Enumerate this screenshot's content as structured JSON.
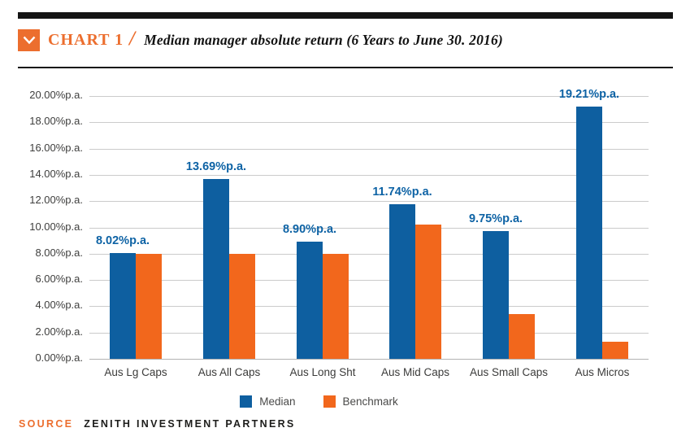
{
  "header": {
    "chart_label": "CHART 1",
    "separator": "/",
    "title": "Median manager absolute return (6 Years to June 30. 2016)"
  },
  "icons": {
    "header_marker": "chevron-down-icon"
  },
  "colors": {
    "accent_orange": "#ec6e2e",
    "bar_blue": "#0e5fa0",
    "bar_orange": "#f2671c",
    "value_label_blue": "#0e63a5",
    "rule_black": "#141414",
    "gridline_gray": "#cbcbcb"
  },
  "chart_data": {
    "type": "bar",
    "title": "Median manager absolute return (6 Years to June 30. 2016)",
    "categories": [
      "Aus Lg Caps",
      "Aus All Caps",
      "Aus Long Sht",
      "Aus Mid Caps",
      "Aus Small Caps",
      "Aus Micros"
    ],
    "series": [
      {
        "name": "Median",
        "color": "#0e5fa0",
        "values": [
          8.02,
          13.69,
          8.9,
          11.74,
          9.75,
          19.21
        ],
        "data_labels": [
          "8.02%p.a.",
          "13.69%p.a.",
          "8.90%p.a.",
          "11.74%p.a.",
          "9.75%p.a.",
          "19.21%p.a."
        ]
      },
      {
        "name": "Benchmark",
        "color": "#f2671c",
        "values": [
          8.0,
          8.0,
          8.0,
          10.2,
          3.4,
          1.3
        ],
        "data_labels": []
      }
    ],
    "xlabel": "",
    "ylabel": "",
    "ylim": [
      0,
      20
    ],
    "ytick_step": 2,
    "ytick_labels": [
      "20.00%p.a.",
      "18.00%p.a.",
      "16.00%p.a.",
      "14.00%p.a.",
      "12.00%p.a.",
      "10.00%p.a.",
      "8.00%p.a.",
      "6.00%p.a.",
      "4.00%p.a.",
      "2.00%p.a.",
      "0.00%p.a."
    ],
    "grid": true,
    "legend_position": "bottom-center"
  },
  "source": {
    "label": "SOURCE",
    "company": "ZENITH INVESTMENT PARTNERS"
  }
}
